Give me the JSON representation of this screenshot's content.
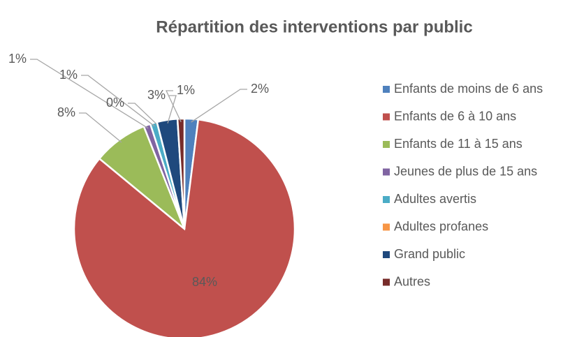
{
  "chart_data": {
    "type": "pie",
    "title": "Répartition des interventions par public",
    "categories": [
      "Enfants de moins de 6 ans",
      "Enfants de 6 à 10 ans",
      "Enfants de 11 à 15 ans",
      "Jeunes de plus de 15 ans",
      "Adultes avertis",
      "Adultes profanes",
      "Grand public",
      "Autres"
    ],
    "values": [
      2,
      84,
      8,
      1,
      1,
      0,
      3,
      1
    ],
    "value_labels": [
      "2%",
      "84%",
      "8%",
      "1%",
      "1%",
      "0%",
      "3%",
      "1%"
    ],
    "colors": [
      "#4f81bd",
      "#c0504d",
      "#9bbb59",
      "#8064a2",
      "#4bacc6",
      "#f79646",
      "#1f497d",
      "#772c2a"
    ],
    "legend": "right"
  }
}
